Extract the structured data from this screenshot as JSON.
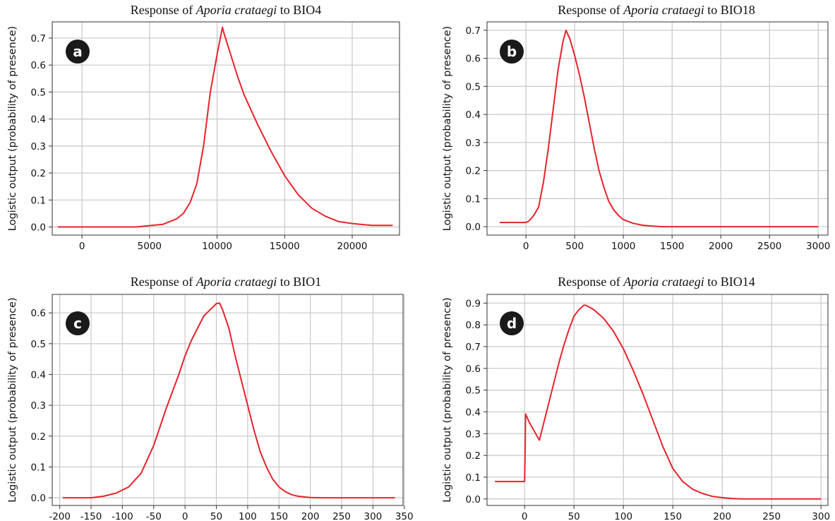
{
  "chart_data": [
    {
      "type": "line",
      "panel_label": "a",
      "title_prefix": "Response of ",
      "title_species": "Aporia crataegi",
      "title_suffix": " to BIO4",
      "ylabel": "Logistic output (probability of presence)",
      "xlabel": "",
      "xlim": [
        -2200,
        23500
      ],
      "ylim": [
        -0.03,
        0.76
      ],
      "xticks": [
        0,
        5000,
        10000,
        15000,
        20000
      ],
      "yticks": [
        0.0,
        0.1,
        0.2,
        0.3,
        0.4,
        0.5,
        0.6,
        0.7
      ],
      "grid": true,
      "color": "#e8232c",
      "x": [
        -1800,
        0,
        2000,
        4000,
        5000,
        6000,
        7000,
        7500,
        8000,
        8500,
        9000,
        9500,
        10000,
        10400,
        10500,
        11000,
        11500,
        12000,
        13000,
        14000,
        15000,
        16000,
        17000,
        18000,
        19000,
        20000,
        21000,
        21500,
        23000
      ],
      "y": [
        0.0,
        0.0,
        0.0,
        0.0,
        0.005,
        0.01,
        0.03,
        0.05,
        0.09,
        0.16,
        0.3,
        0.5,
        0.64,
        0.74,
        0.72,
        0.64,
        0.56,
        0.49,
        0.38,
        0.28,
        0.19,
        0.12,
        0.07,
        0.04,
        0.02,
        0.013,
        0.008,
        0.006,
        0.006
      ]
    },
    {
      "type": "line",
      "panel_label": "b",
      "title_prefix": "Response of ",
      "title_species": "Aporia crataegi",
      "title_suffix": " to BIO18",
      "ylabel": "Logistic output (probability of presence)",
      "xlabel": "",
      "xlim": [
        -400,
        3100
      ],
      "ylim": [
        -0.03,
        0.73
      ],
      "xticks": [
        0,
        500,
        1000,
        1500,
        2000,
        2500,
        3000
      ],
      "yticks": [
        0.0,
        0.1,
        0.2,
        0.3,
        0.4,
        0.5,
        0.6,
        0.7
      ],
      "grid": true,
      "color": "#e8232c",
      "x": [
        -270,
        0,
        30,
        80,
        130,
        180,
        230,
        280,
        330,
        380,
        410,
        450,
        500,
        550,
        600,
        650,
        700,
        750,
        800,
        850,
        900,
        950,
        1000,
        1100,
        1200,
        1300,
        1400,
        1500,
        2000,
        2500,
        3000
      ],
      "y": [
        0.015,
        0.015,
        0.02,
        0.04,
        0.07,
        0.16,
        0.28,
        0.42,
        0.56,
        0.66,
        0.7,
        0.67,
        0.61,
        0.54,
        0.46,
        0.37,
        0.28,
        0.2,
        0.14,
        0.09,
        0.06,
        0.04,
        0.025,
        0.012,
        0.005,
        0.002,
        0.0,
        0.0,
        0.0,
        0.0,
        0.0
      ]
    },
    {
      "type": "line",
      "panel_label": "c",
      "title_prefix": "Response of ",
      "title_species": "Aporia crataegi",
      "title_suffix": " to BIO1",
      "ylabel": "Logistic output (probability of presence)",
      "xlabel": "",
      "xlim": [
        -212,
        348
      ],
      "ylim": [
        -0.025,
        0.66
      ],
      "xticks": [
        -200,
        -150,
        -100,
        -50,
        0,
        50,
        100,
        150,
        200,
        250,
        300,
        350
      ],
      "yticks": [
        0.0,
        0.1,
        0.2,
        0.3,
        0.4,
        0.5,
        0.6
      ],
      "grid": true,
      "color": "#e8232c",
      "x": [
        -195,
        -170,
        -150,
        -130,
        -110,
        -90,
        -70,
        -50,
        -30,
        -10,
        0,
        10,
        20,
        30,
        40,
        50,
        55,
        60,
        70,
        80,
        90,
        100,
        110,
        120,
        130,
        140,
        150,
        160,
        170,
        180,
        200,
        220,
        250,
        300,
        335
      ],
      "y": [
        0.0,
        0.0,
        0.0,
        0.005,
        0.015,
        0.035,
        0.08,
        0.17,
        0.29,
        0.4,
        0.46,
        0.51,
        0.55,
        0.59,
        0.61,
        0.63,
        0.632,
        0.61,
        0.55,
        0.46,
        0.38,
        0.3,
        0.22,
        0.15,
        0.1,
        0.06,
        0.035,
        0.02,
        0.01,
        0.005,
        0.001,
        0.0,
        0.0,
        0.0,
        0.0
      ]
    },
    {
      "type": "line",
      "panel_label": "d",
      "title_prefix": "Response of ",
      "title_species": "Aporia crataegi",
      "title_suffix": " to BIO14",
      "ylabel": "Logistic output (probability of presence)",
      "xlabel": "",
      "xlim": [
        -38,
        307
      ],
      "ylim": [
        -0.03,
        0.94
      ],
      "xticks": [
        0,
        50,
        100,
        150,
        200,
        250,
        300
      ],
      "yticks": [
        0.0,
        0.1,
        0.2,
        0.3,
        0.4,
        0.5,
        0.6,
        0.7,
        0.8,
        0.9
      ],
      "grid": true,
      "color": "#e8232c",
      "x": [
        -30,
        0,
        0.5,
        1,
        5,
        10,
        15,
        20,
        25,
        30,
        35,
        40,
        45,
        50,
        55,
        60,
        62,
        70,
        80,
        90,
        100,
        110,
        120,
        130,
        140,
        150,
        160,
        170,
        180,
        190,
        200,
        210,
        220,
        250,
        300
      ],
      "y": [
        0.08,
        0.08,
        0.2,
        0.39,
        0.35,
        0.31,
        0.27,
        0.36,
        0.45,
        0.54,
        0.63,
        0.71,
        0.78,
        0.84,
        0.87,
        0.89,
        0.89,
        0.87,
        0.83,
        0.77,
        0.69,
        0.59,
        0.48,
        0.36,
        0.24,
        0.14,
        0.08,
        0.045,
        0.025,
        0.012,
        0.006,
        0.002,
        0.0,
        0.0,
        0.0
      ]
    }
  ]
}
